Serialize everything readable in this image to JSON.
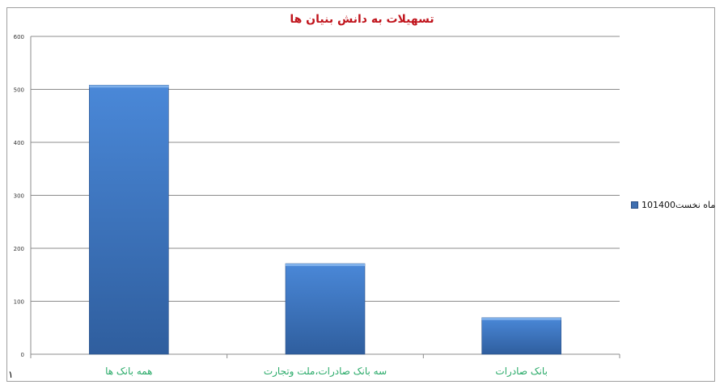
{
  "chart_data": {
    "type": "bar",
    "title": "تسهیلات به دانش بنیان ها",
    "categories": [
      "همه بانک ها",
      "سه بانک صادرات،ملت وتجارت",
      "بانک صادرات"
    ],
    "series": [
      {
        "name": "10ماه نخست1400",
        "values": [
          508,
          171,
          69
        ]
      }
    ],
    "ylim": [
      0,
      600
    ],
    "yticks": [
      0,
      100,
      200,
      300,
      400,
      500,
      600
    ],
    "grid": true,
    "legend": "right",
    "colors": {
      "bar": "#3f7ccc",
      "title": "#c0141c",
      "labels": "#2bab6a"
    }
  },
  "page_mark": "۱"
}
